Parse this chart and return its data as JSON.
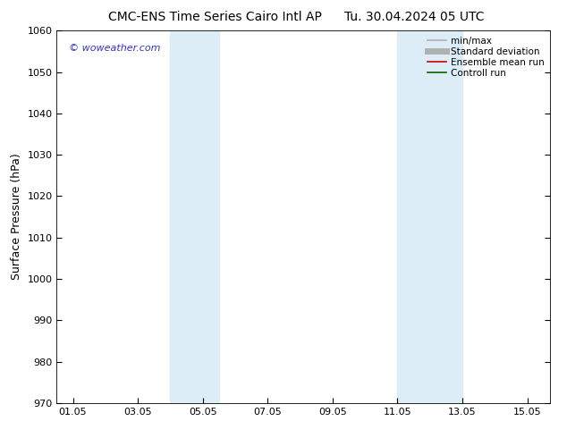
{
  "title_left": "CMC-ENS Time Series Cairo Intl AP",
  "title_right": "Tu. 30.04.2024 05 UTC",
  "ylabel": "Surface Pressure (hPa)",
  "ylim": [
    970,
    1060
  ],
  "yticks": [
    970,
    980,
    990,
    1000,
    1010,
    1020,
    1030,
    1040,
    1050,
    1060
  ],
  "xlim": [
    0.5,
    15.7
  ],
  "xtick_labels": [
    "01.05",
    "03.05",
    "05.05",
    "07.05",
    "09.05",
    "11.05",
    "13.05",
    "15.05"
  ],
  "xtick_positions": [
    1,
    3,
    5,
    7,
    9,
    11,
    13,
    15
  ],
  "shaded_bands": [
    {
      "x_start": 4.0,
      "x_end": 5.5,
      "color": "#ddedf8"
    },
    {
      "x_start": 11.0,
      "x_end": 13.0,
      "color": "#ddedf8"
    }
  ],
  "legend_entries": [
    {
      "label": "min/max",
      "color": "#b0b0b0",
      "lw": 1.2
    },
    {
      "label": "Standard deviation",
      "color": "#b0b0b0",
      "lw": 5
    },
    {
      "label": "Ensemble mean run",
      "color": "#cc0000",
      "lw": 1.2
    },
    {
      "label": "Controll run",
      "color": "#006600",
      "lw": 1.2
    }
  ],
  "watermark": "© woweather.com",
  "watermark_color": "#3333cc",
  "bg_color": "#ffffff",
  "title_fontsize": 10,
  "axis_label_fontsize": 9,
  "tick_fontsize": 8,
  "legend_fontsize": 7.5,
  "watermark_fontsize": 8
}
